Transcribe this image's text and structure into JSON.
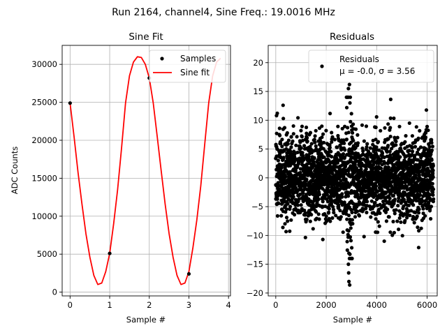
{
  "figure_title": "Run 2164, channel4, Sine Freq.: 19.0016 MHz",
  "colors": {
    "fit": "#ff0000",
    "points": "#000000",
    "grid": "#b0b0b0"
  },
  "chart_data": [
    {
      "type": "line",
      "title": "Sine Fit",
      "xlabel": "Sample #",
      "ylabel": "ADC Counts",
      "xlim": [
        -0.2,
        4.05
      ],
      "ylim": [
        -500,
        32500
      ],
      "xticks": [
        0,
        1,
        2,
        3,
        4
      ],
      "xtick_labels": [
        "0",
        "1",
        "2",
        "3",
        "4"
      ],
      "yticks": [
        0,
        5000,
        10000,
        15000,
        20000,
        25000,
        30000
      ],
      "ytick_labels": [
        "0",
        "5000",
        "10000",
        "15000",
        "20000",
        "25000",
        "30000"
      ],
      "grid": true,
      "legend": {
        "position": "top-right",
        "entries": [
          "Samples",
          "Sine fit"
        ]
      },
      "series": [
        {
          "name": "Samples",
          "kind": "scatter",
          "x": [
            0,
            1,
            2,
            3
          ],
          "y": [
            24900,
            5100,
            28200,
            2400
          ]
        },
        {
          "name": "Sine fit",
          "kind": "line",
          "x": [
            0,
            0.1,
            0.2,
            0.3,
            0.4,
            0.5,
            0.6,
            0.7,
            0.8,
            0.9,
            1.0,
            1.1,
            1.2,
            1.3,
            1.4,
            1.5,
            1.6,
            1.7,
            1.8,
            1.9,
            2.0,
            2.1,
            2.2,
            2.3,
            2.4,
            2.5,
            2.6,
            2.7,
            2.8,
            2.9,
            3.0,
            3.1,
            3.2,
            3.3,
            3.4,
            3.5,
            3.6,
            3.7,
            3.8
          ],
          "y": [
            24900,
            20500,
            15800,
            11600,
            7700,
            4600,
            2200,
            1000,
            1200,
            2700,
            5100,
            9000,
            13500,
            19000,
            24900,
            28500,
            30300,
            31000,
            30900,
            30000,
            28200,
            24900,
            20500,
            16000,
            11600,
            7700,
            4600,
            2200,
            1000,
            1200,
            2700,
            5800,
            9500,
            14000,
            19500,
            24900,
            28500,
            30300,
            30800
          ]
        }
      ]
    },
    {
      "type": "scatter",
      "title": "Residuals",
      "xlabel": "Sample #",
      "ylabel": "",
      "xlim": [
        -300,
        6400
      ],
      "ylim": [
        -20.5,
        23
      ],
      "xticks": [
        0,
        2000,
        4000,
        6000
      ],
      "xtick_labels": [
        "0",
        "2000",
        "4000",
        "6000"
      ],
      "yticks": [
        -20,
        -15,
        -10,
        -5,
        0,
        5,
        10,
        15,
        20
      ],
      "ytick_labels": [
        "−20",
        "−15",
        "−10",
        "−5",
        "0",
        "5",
        "10",
        "15",
        "20"
      ],
      "grid": true,
      "legend": {
        "position": "top-right",
        "entries": [
          "Residuals"
        ],
        "stats_line": "μ = -0.0, σ = 3.56"
      },
      "series": [
        {
          "name": "Residuals",
          "n_points": 6250,
          "x_range": [
            0,
            6250
          ],
          "mean": -0.0,
          "std": 3.56,
          "outliers": [
            {
              "x": 30,
              "y": 10.8
            },
            {
              "x": 60,
              "y": 11.2
            },
            {
              "x": 290,
              "y": 12.6
            },
            {
              "x": 300,
              "y": 10.3
            },
            {
              "x": 2880,
              "y": 15.5
            },
            {
              "x": 2920,
              "y": 16.2
            },
            {
              "x": 2940,
              "y": 13.0
            },
            {
              "x": 2880,
              "y": -15.0
            },
            {
              "x": 2900,
              "y": -18.0
            },
            {
              "x": 2930,
              "y": -18.6
            },
            {
              "x": 2890,
              "y": -16.5
            },
            {
              "x": 4300,
              "y": -11.0
            },
            {
              "x": 3500,
              "y": -10.2
            },
            {
              "x": 6000,
              "y": 8.9
            },
            {
              "x": 5300,
              "y": 9.5
            },
            {
              "x": 1000,
              "y": 8.2
            },
            {
              "x": 700,
              "y": 9.0
            }
          ]
        }
      ]
    }
  ]
}
